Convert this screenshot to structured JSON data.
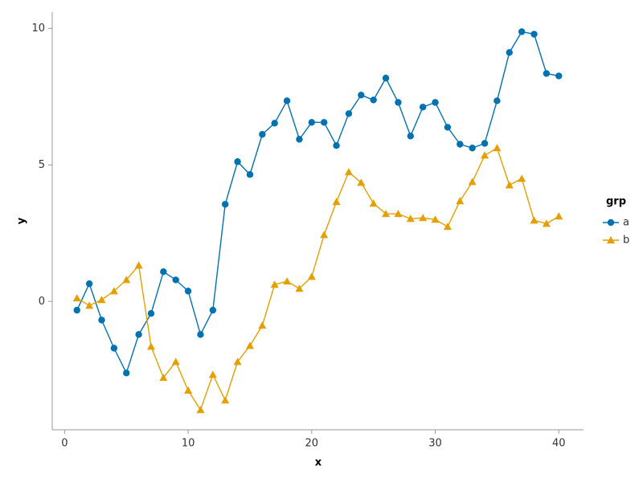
{
  "chart_data": {
    "type": "line",
    "x_label": "x",
    "y_label": "y",
    "legend_title": "grp",
    "legend": "right",
    "x": [
      1,
      2,
      3,
      4,
      5,
      6,
      7,
      8,
      9,
      10,
      11,
      12,
      13,
      14,
      15,
      16,
      17,
      18,
      19,
      20,
      21,
      22,
      23,
      24,
      25,
      26,
      27,
      28,
      29,
      30,
      31,
      32,
      33,
      34,
      35,
      36,
      37,
      38,
      39,
      40
    ],
    "series": [
      {
        "name": "a",
        "color": "#0072b2",
        "marker": "circle",
        "values": [
          -0.32,
          0.65,
          -0.68,
          -1.71,
          -2.62,
          -1.21,
          -0.44,
          1.09,
          0.79,
          0.38,
          -1.21,
          -0.32,
          3.56,
          5.12,
          4.65,
          6.12,
          6.53,
          7.35,
          5.94,
          6.56,
          6.56,
          5.71,
          6.88,
          7.56,
          7.38,
          8.18,
          7.29,
          6.06,
          7.12,
          7.29,
          6.38,
          5.76,
          5.62,
          5.79,
          7.35,
          9.12,
          9.88,
          9.79,
          8.35,
          8.26
        ]
      },
      {
        "name": "b",
        "color": "#e69f00",
        "marker": "triangle",
        "values": [
          0.12,
          -0.15,
          0.06,
          0.38,
          0.79,
          1.32,
          -1.65,
          -2.79,
          -2.21,
          -3.26,
          -3.97,
          -2.68,
          -3.62,
          -2.21,
          -1.62,
          -0.88,
          0.62,
          0.74,
          0.47,
          0.91,
          2.44,
          3.65,
          4.74,
          4.35,
          3.59,
          3.21,
          3.21,
          3.03,
          3.06,
          3.0,
          2.74,
          3.68,
          4.38,
          5.35,
          5.62,
          4.26,
          4.5,
          2.97,
          2.85,
          3.12
        ]
      }
    ],
    "xlim": [
      -1,
      42
    ],
    "ylim": [
      -4.7,
      10.6
    ],
    "xticks": [
      0,
      10,
      20,
      30,
      40
    ],
    "yticks": [
      0,
      5,
      10
    ]
  }
}
